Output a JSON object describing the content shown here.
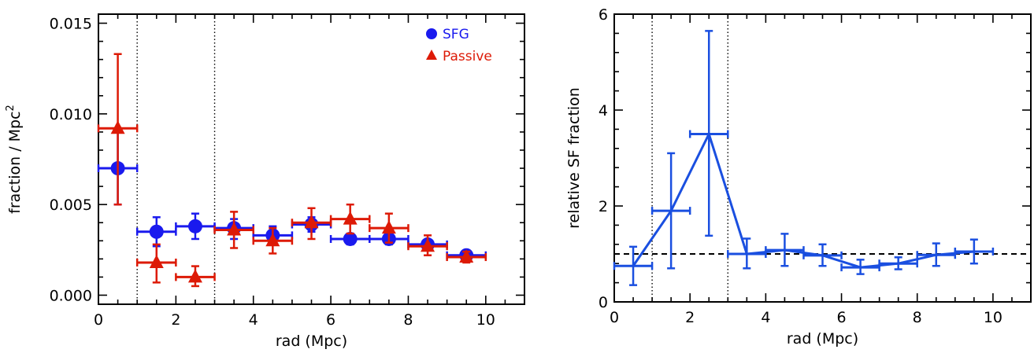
{
  "colors": {
    "sfg": "#1a1aee",
    "passive": "#dd1a06",
    "relative": "#1a4fe0",
    "axis": "#000000"
  },
  "chart_data": [
    {
      "type": "scatter",
      "xlabel": "rad (Mpc)",
      "ylabel": "fraction / Mpc",
      "ylabel_superscript": "2",
      "xlim": [
        0,
        11
      ],
      "ylim": [
        -0.0005,
        0.0155
      ],
      "xticks": [
        "0",
        "2",
        "4",
        "6",
        "8",
        "10"
      ],
      "yticks": [
        "0.000",
        "0.005",
        "0.010",
        "0.015"
      ],
      "vlines": [
        1,
        3
      ],
      "legend": {
        "placement": "top-right",
        "entries": [
          "SFG",
          "Passive"
        ]
      },
      "series": [
        {
          "name": "SFG",
          "marker": "circle",
          "points": [
            {
              "x": 0.5,
              "y": 0.007,
              "xerr": 0.5,
              "ylo": 0.005,
              "yhi": 0.009
            },
            {
              "x": 1.5,
              "y": 0.0035,
              "xerr": 0.5,
              "ylo": 0.0027,
              "yhi": 0.0043
            },
            {
              "x": 2.5,
              "y": 0.0038,
              "xerr": 0.5,
              "ylo": 0.0031,
              "yhi": 0.0045
            },
            {
              "x": 3.5,
              "y": 0.0037,
              "xerr": 0.5,
              "ylo": 0.0031,
              "yhi": 0.0042
            },
            {
              "x": 4.5,
              "y": 0.0033,
              "xerr": 0.5,
              "ylo": 0.0029,
              "yhi": 0.0038
            },
            {
              "x": 5.5,
              "y": 0.0039,
              "xerr": 0.5,
              "ylo": 0.0035,
              "yhi": 0.0043
            },
            {
              "x": 6.5,
              "y": 0.0031,
              "xerr": 0.5,
              "ylo": 0.0028,
              "yhi": 0.0033
            },
            {
              "x": 7.5,
              "y": 0.0031,
              "xerr": 0.5,
              "ylo": 0.0028,
              "yhi": 0.0033
            },
            {
              "x": 8.5,
              "y": 0.0028,
              "xerr": 0.5,
              "ylo": 0.0025,
              "yhi": 0.003
            },
            {
              "x": 9.5,
              "y": 0.0022,
              "xerr": 0.5,
              "ylo": 0.002,
              "yhi": 0.0024
            }
          ]
        },
        {
          "name": "Passive",
          "marker": "triangle",
          "points": [
            {
              "x": 0.5,
              "y": 0.0092,
              "xerr": 0.5,
              "ylo": 0.005,
              "yhi": 0.0133
            },
            {
              "x": 1.5,
              "y": 0.0018,
              "xerr": 0.5,
              "ylo": 0.0007,
              "yhi": 0.0028
            },
            {
              "x": 2.5,
              "y": 0.001,
              "xerr": 0.5,
              "ylo": 0.0005,
              "yhi": 0.0016
            },
            {
              "x": 3.5,
              "y": 0.0036,
              "xerr": 0.5,
              "ylo": 0.0026,
              "yhi": 0.0046
            },
            {
              "x": 4.5,
              "y": 0.003,
              "xerr": 0.5,
              "ylo": 0.0023,
              "yhi": 0.0037
            },
            {
              "x": 5.5,
              "y": 0.004,
              "xerr": 0.5,
              "ylo": 0.0031,
              "yhi": 0.0048
            },
            {
              "x": 6.5,
              "y": 0.0042,
              "xerr": 0.5,
              "ylo": 0.0034,
              "yhi": 0.005
            },
            {
              "x": 7.5,
              "y": 0.0037,
              "xerr": 0.5,
              "ylo": 0.0029,
              "yhi": 0.0045
            },
            {
              "x": 8.5,
              "y": 0.0027,
              "xerr": 0.5,
              "ylo": 0.0022,
              "yhi": 0.0033
            },
            {
              "x": 9.5,
              "y": 0.0021,
              "xerr": 0.5,
              "ylo": 0.0018,
              "yhi": 0.0024
            }
          ]
        }
      ]
    },
    {
      "type": "line",
      "xlabel": "rad (Mpc)",
      "ylabel": "relative SF fraction",
      "xlim": [
        0,
        11
      ],
      "ylim": [
        0,
        6
      ],
      "xticks": [
        "0",
        "2",
        "4",
        "6",
        "8",
        "10"
      ],
      "yticks": [
        "0",
        "2",
        "4",
        "6"
      ],
      "vlines": [
        1,
        3
      ],
      "hline": 1.0,
      "series": [
        {
          "points": [
            {
              "x": 0.5,
              "y": 0.75,
              "xerr": 0.5,
              "ylo": 0.35,
              "yhi": 1.15
            },
            {
              "x": 1.5,
              "y": 1.9,
              "xerr": 0.5,
              "ylo": 0.7,
              "yhi": 3.1
            },
            {
              "x": 2.5,
              "y": 3.5,
              "xerr": 0.5,
              "ylo": 1.38,
              "yhi": 5.65
            },
            {
              "x": 3.5,
              "y": 1.0,
              "xerr": 0.5,
              "ylo": 0.7,
              "yhi": 1.32
            },
            {
              "x": 4.5,
              "y": 1.08,
              "xerr": 0.5,
              "ylo": 0.75,
              "yhi": 1.42
            },
            {
              "x": 5.5,
              "y": 0.97,
              "xerr": 0.5,
              "ylo": 0.75,
              "yhi": 1.2
            },
            {
              "x": 6.5,
              "y": 0.72,
              "xerr": 0.5,
              "ylo": 0.58,
              "yhi": 0.88
            },
            {
              "x": 7.5,
              "y": 0.8,
              "xerr": 0.5,
              "ylo": 0.68,
              "yhi": 0.93
            },
            {
              "x": 8.5,
              "y": 0.98,
              "xerr": 0.5,
              "ylo": 0.75,
              "yhi": 1.22
            },
            {
              "x": 9.5,
              "y": 1.05,
              "xerr": 0.5,
              "ylo": 0.8,
              "yhi": 1.3
            }
          ]
        }
      ]
    }
  ]
}
